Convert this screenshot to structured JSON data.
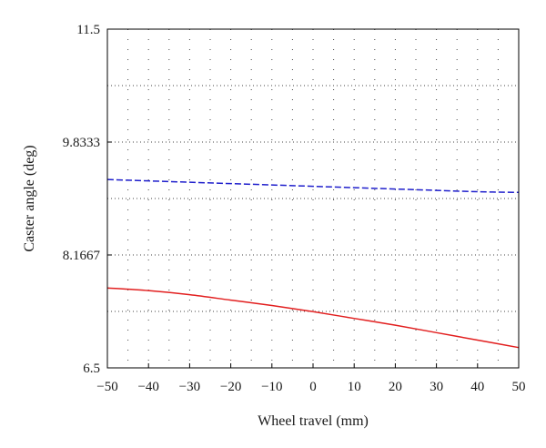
{
  "chart_data": {
    "type": "line",
    "title": "",
    "xlabel": "Wheel travel (mm)",
    "ylabel": "Caster angle (deg)",
    "xlim": [
      -50,
      50
    ],
    "ylim": [
      6.5,
      11.5
    ],
    "x_ticks": [
      -50,
      -40,
      -30,
      -20,
      -10,
      0,
      10,
      20,
      30,
      40,
      50
    ],
    "x_tick_labels": [
      "−50",
      "−40",
      "−30",
      "−20",
      "−10",
      "0",
      "10",
      "20",
      "30",
      "40",
      "50"
    ],
    "y_ticks": [
      6.5,
      8.1667,
      9.8333,
      11.5
    ],
    "y_tick_labels": [
      "6.5",
      "8.1667",
      "9.8333",
      "11.5"
    ],
    "grid": "dotted",
    "legend": "none",
    "series": [
      {
        "color": "#1f1fcc",
        "style": "dashed",
        "x": [
          -50,
          -40,
          -30,
          -20,
          -10,
          0,
          10,
          20,
          30,
          40,
          50
        ],
        "y": [
          9.28,
          9.26,
          9.24,
          9.22,
          9.2,
          9.18,
          9.16,
          9.14,
          9.12,
          9.1,
          9.09
        ]
      },
      {
        "color": "#e21f1f",
        "style": "solid",
        "x": [
          -50,
          -40,
          -30,
          -20,
          -10,
          0,
          10,
          20,
          30,
          40,
          50
        ],
        "y": [
          7.68,
          7.64,
          7.58,
          7.5,
          7.42,
          7.33,
          7.23,
          7.13,
          7.02,
          6.91,
          6.8
        ]
      }
    ]
  }
}
